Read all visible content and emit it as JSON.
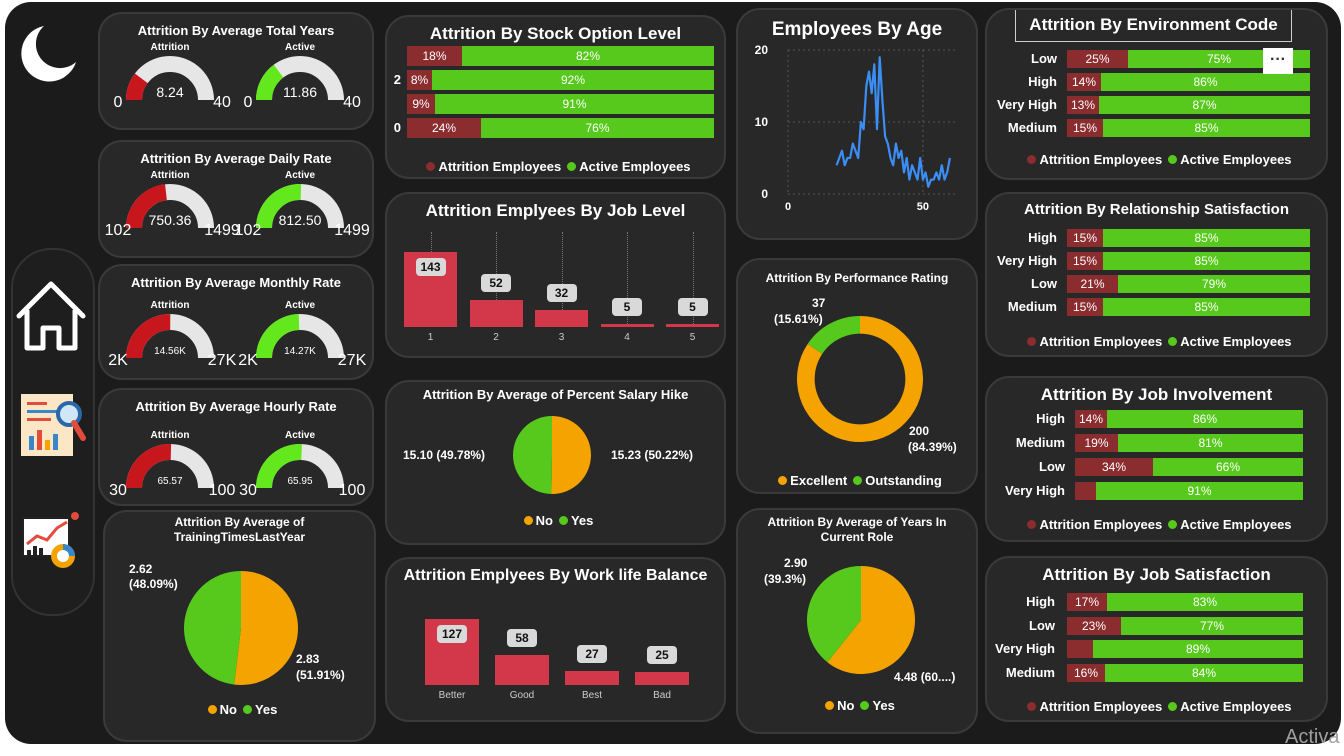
{
  "sidebar": {
    "icons": [
      "moon-icon",
      "home-icon",
      "report-icon",
      "analytics-icon"
    ]
  },
  "colors": {
    "attrition_red": "#c8161d",
    "active_green": "#62e81c",
    "gauge_bg": "#e6e6e6",
    "seg_red": "#8b2c2f",
    "seg_green": "#57c91c",
    "orange": "#f5a300",
    "bar_red": "#d2384a"
  },
  "gauges": [
    {
      "title": "Attrition By Average Total Years",
      "left_label": "Attrition",
      "right_label": "Active",
      "left": {
        "value": "8.24",
        "min": "0",
        "max": "40",
        "fraction": 0.206
      },
      "right": {
        "value": "11.86",
        "min": "0",
        "max": "40",
        "fraction": 0.2965
      }
    },
    {
      "title": "Attrition By Average Daily Rate",
      "left_label": "Attrition",
      "right_label": "Active",
      "left": {
        "value": "750.36",
        "min": "102",
        "max": "1499",
        "fraction": 0.464
      },
      "right": {
        "value": "812.50",
        "min": "102",
        "max": "1499",
        "fraction": 0.508
      }
    },
    {
      "title": "Attrition By Average Monthly Rate",
      "left_label": "Attrition",
      "right_label": "Active",
      "left": {
        "value": "14.56K",
        "min": "2K",
        "max": "27K",
        "fraction": 0.502
      },
      "right": {
        "value": "14.27K",
        "min": "2K",
        "max": "27K",
        "fraction": 0.491
      }
    },
    {
      "title": "Attrition By Average Hourly Rate",
      "left_label": "Attrition",
      "right_label": "Active",
      "left": {
        "value": "65.57",
        "min": "30",
        "max": "100",
        "fraction": 0.508
      },
      "right": {
        "value": "65.95",
        "min": "30",
        "max": "100",
        "fraction": 0.514
      }
    }
  ],
  "training": {
    "title_line1": "Attrition By Average of",
    "title_line2": "TrainingTimesLastYear",
    "yes_label_1": "2.62",
    "yes_label_2": "(48.09%)",
    "no_label_1": "2.83",
    "no_label_2": "(51.91%)",
    "legend_no": "No",
    "legend_yes": "Yes",
    "no_share": 51.91
  },
  "stock": {
    "title": "Attrition By Stock Option Level",
    "rows": [
      {
        "label": "",
        "attr": "18%",
        "act": "82%",
        "a": 18
      },
      {
        "label": "2",
        "attr": "8%",
        "act": "92%",
        "a": 8
      },
      {
        "label": "",
        "attr": "9%",
        "act": "91%",
        "a": 9
      },
      {
        "label": "0",
        "attr": "24%",
        "act": "76%",
        "a": 24
      }
    ],
    "legend_attr": "Attrition Employees",
    "legend_act": "Active Employees"
  },
  "joblevel": {
    "title": "Attrition Emplyees By Job Level",
    "bars": [
      {
        "cat": "1",
        "v": 143,
        "lbl": "143"
      },
      {
        "cat": "2",
        "v": 52,
        "lbl": "52"
      },
      {
        "cat": "3",
        "v": 32,
        "lbl": "32"
      },
      {
        "cat": "4",
        "v": 5,
        "lbl": "5"
      },
      {
        "cat": "5",
        "v": 5,
        "lbl": "5"
      }
    ]
  },
  "salary": {
    "title": "Attrition By Average of Percent Salary Hike",
    "left_label": "15.10 (49.78%)",
    "right_label": "15.23 (50.22%)",
    "legend_no": "No",
    "legend_yes": "Yes",
    "no_share": 50.22
  },
  "worklife": {
    "title": "Attrition Emplyees By Work life Balance",
    "bars": [
      {
        "cat": "Better",
        "v": 127,
        "lbl": "127"
      },
      {
        "cat": "Good",
        "v": 58,
        "lbl": "58"
      },
      {
        "cat": "Best",
        "v": 27,
        "lbl": "27"
      },
      {
        "cat": "Bad",
        "v": 25,
        "lbl": "25"
      }
    ]
  },
  "age": {
    "title": "Employees By Age",
    "y_ticks": [
      "20",
      "10",
      "0"
    ],
    "x_ticks": [
      "0",
      "50"
    ],
    "ages": [
      18,
      19,
      20,
      21,
      22,
      23,
      24,
      25,
      26,
      27,
      28,
      29,
      30,
      31,
      32,
      33,
      34,
      35,
      36,
      37,
      38,
      39,
      40,
      41,
      42,
      43,
      44,
      45,
      46,
      47,
      48,
      49,
      50,
      51,
      52,
      53,
      54,
      55,
      56,
      57,
      58,
      59,
      60
    ],
    "counts": [
      4,
      5,
      6,
      4,
      5,
      5,
      7,
      6,
      5,
      10,
      9,
      15,
      17,
      14,
      18,
      9,
      19,
      13,
      8,
      7,
      5,
      4,
      7,
      5,
      6,
      3,
      5,
      2,
      4,
      3,
      2,
      5,
      2,
      3,
      1,
      2,
      2,
      3,
      2,
      4,
      2,
      3,
      5
    ]
  },
  "performance": {
    "title": "Attrition By Performance Rating",
    "outstanding_1": "37",
    "outstanding_2": "(15.61%)",
    "excellent_1": "200",
    "excellent_2": "(84.39%)",
    "legend_excellent": "Excellent",
    "legend_outstanding": "Outstanding",
    "outstanding_share": 15.61
  },
  "role": {
    "title_line1": "Attrition By Average of Years In",
    "title_line2": "Current Role",
    "yes_1": "2.90",
    "yes_2": "(39.3%)",
    "no_label": "4.48 (60....)",
    "legend_no": "No",
    "legend_yes": "Yes",
    "yes_share": 39.3
  },
  "environment": {
    "title": "Attrition By Environment Code",
    "more": "···",
    "rows": [
      {
        "label": "Low",
        "attr": "25%",
        "act": "75%",
        "a": 25
      },
      {
        "label": "High",
        "attr": "14%",
        "act": "86%",
        "a": 14
      },
      {
        "label": "Very High",
        "attr": "13%",
        "act": "87%",
        "a": 13
      },
      {
        "label": "Medium",
        "attr": "15%",
        "act": "85%",
        "a": 15
      }
    ]
  },
  "relationship": {
    "title": "Attrition By Relationship Satisfaction",
    "rows": [
      {
        "label": "High",
        "attr": "15%",
        "act": "85%",
        "a": 15
      },
      {
        "label": "Very High",
        "attr": "15%",
        "act": "85%",
        "a": 15
      },
      {
        "label": "Low",
        "attr": "21%",
        "act": "79%",
        "a": 21
      },
      {
        "label": "Medium",
        "attr": "15%",
        "act": "85%",
        "a": 15
      }
    ]
  },
  "involvement": {
    "title": "Attrition By Job Involvement",
    "rows": [
      {
        "label": "High",
        "attr": "14%",
        "act": "86%",
        "a": 14
      },
      {
        "label": "Medium",
        "attr": "19%",
        "act": "81%",
        "a": 19
      },
      {
        "label": "Low",
        "attr": "34%",
        "act": "66%",
        "a": 34
      },
      {
        "label": "Very High",
        "attr": "",
        "act": "91%",
        "a": 9
      }
    ]
  },
  "satisfaction": {
    "title": "Attrition By Job Satisfaction",
    "rows": [
      {
        "label": "High",
        "attr": "17%",
        "act": "83%",
        "a": 17
      },
      {
        "label": "Low",
        "attr": "23%",
        "act": "77%",
        "a": 23
      },
      {
        "label": "Very High",
        "attr": "",
        "act": "89%",
        "a": 11
      },
      {
        "label": "Medium",
        "attr": "16%",
        "act": "84%",
        "a": 16
      }
    ]
  },
  "legend_attr": "Attrition Employees",
  "legend_act": "Active Employees",
  "watermark": "Activa"
}
